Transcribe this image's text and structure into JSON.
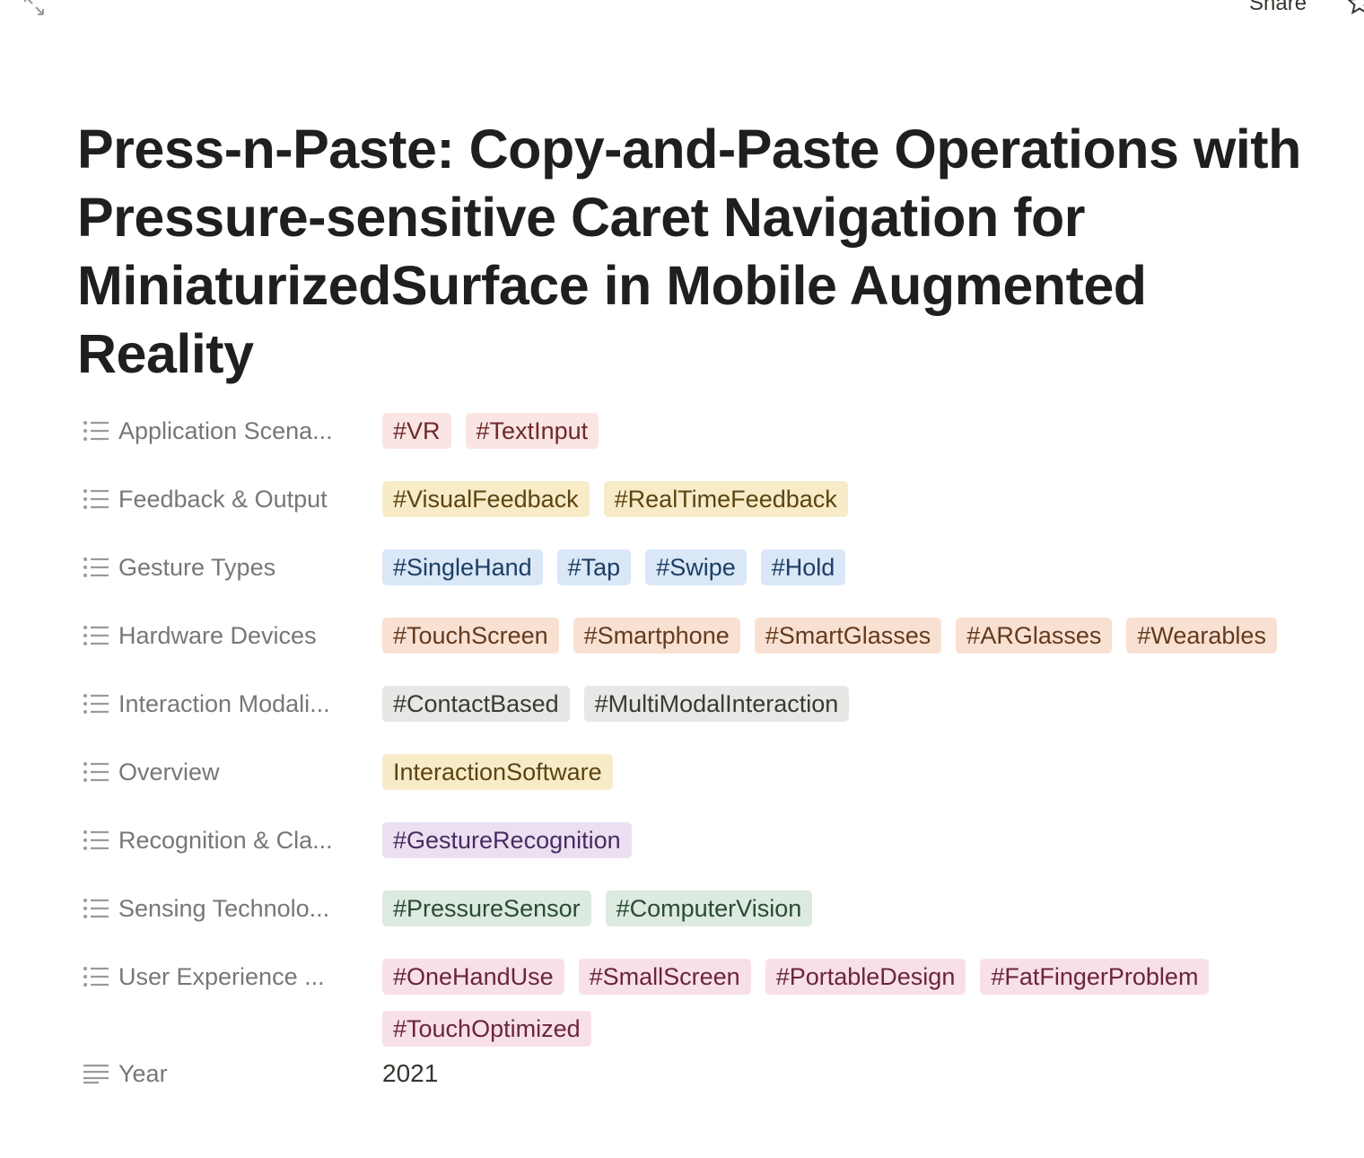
{
  "topbar": {
    "share_label": "Share"
  },
  "page": {
    "title": "Press-n-Paste: Copy-and-Paste Operations with Pressure-sensitive Caret Navigation for MiniaturizedSurface in Mobile Augmented Reality"
  },
  "properties": [
    {
      "label": "Application Scena...",
      "tags": [
        "#VR",
        "#TextInput"
      ],
      "color": "red"
    },
    {
      "label": "Feedback & Output",
      "tags": [
        "#VisualFeedback",
        "#RealTimeFeedback"
      ],
      "color": "yellow"
    },
    {
      "label": "Gesture Types",
      "tags": [
        "#SingleHand",
        "#Tap",
        "#Swipe",
        "#Hold"
      ],
      "color": "blue"
    },
    {
      "label": "Hardware Devices",
      "tags": [
        "#TouchScreen",
        "#Smartphone",
        "#SmartGlasses",
        "#ARGlasses",
        "#Wearables"
      ],
      "color": "orange"
    },
    {
      "label": "Interaction Modali...",
      "tags": [
        "#ContactBased",
        "#MultiModalInteraction"
      ],
      "color": "gray"
    },
    {
      "label": "Overview",
      "tags": [
        "InteractionSoftware"
      ],
      "color": "yellow"
    },
    {
      "label": "Recognition & Cla...",
      "tags": [
        "#GestureRecognition"
      ],
      "color": "purple"
    },
    {
      "label": "Sensing Technolo...",
      "tags": [
        "#PressureSensor",
        "#ComputerVision"
      ],
      "color": "green"
    },
    {
      "label": "User Experience ...",
      "tags": [
        "#OneHandUse",
        "#SmallScreen",
        "#PortableDesign",
        "#FatFingerProblem",
        "#TouchOptimized"
      ],
      "color": "pink"
    }
  ],
  "year": {
    "label": "Year",
    "value": "2021"
  },
  "icons": {
    "list": "list-icon",
    "text": "text-lines-icon",
    "expand": "expand-icon",
    "star": "star-icon"
  }
}
